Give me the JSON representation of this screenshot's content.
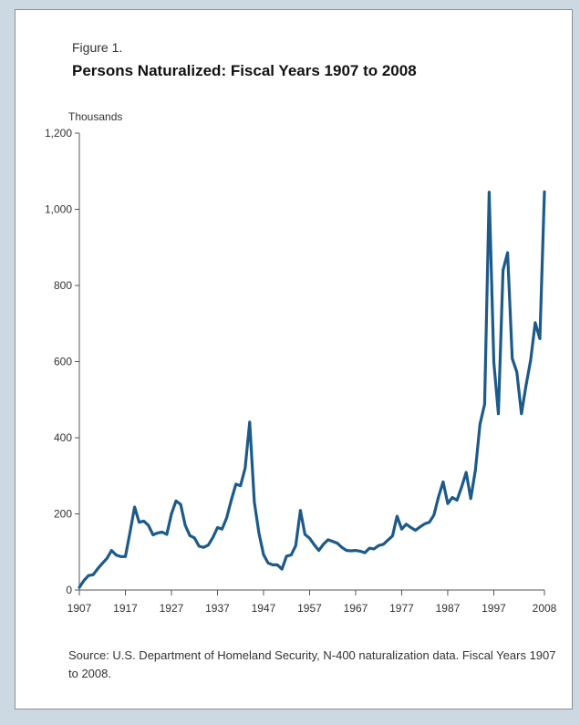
{
  "figure_label": "Figure 1.",
  "source_note": "Source: U.S. Department of Homeland Security, N-400 naturalization data. Fiscal Years 1907 to 2008.",
  "colors": {
    "line": "#1c5a8a",
    "axis": "#555555",
    "panel_bg": "#ffffff",
    "page_bg": "#ccd9e3"
  },
  "chart_data": {
    "type": "line",
    "title": "Persons Naturalized: Fiscal Years 1907 to 2008",
    "ylabel": "Thousands",
    "xlabel": "",
    "xlim": [
      1907,
      2008
    ],
    "ylim": [
      0,
      1200
    ],
    "grid": false,
    "xticks": [
      1907,
      1917,
      1927,
      1937,
      1947,
      1957,
      1967,
      1977,
      1987,
      1997,
      2008
    ],
    "xtick_labels": [
      "1907",
      "1917",
      "1927",
      "1937",
      "1947",
      "1957",
      "1967",
      "1977",
      "1987",
      "1997",
      "2008"
    ],
    "yticks": [
      0,
      200,
      400,
      600,
      800,
      1000,
      1200
    ],
    "ytick_labels": [
      "0",
      "200",
      "400",
      "600",
      "800",
      "1,000",
      "1,200"
    ],
    "series": [
      {
        "x": [
          1907,
          1908,
          1909,
          1910,
          1911,
          1912,
          1913,
          1914,
          1915,
          1916,
          1917,
          1918,
          1919,
          1920,
          1921,
          1922,
          1923,
          1924,
          1925,
          1926,
          1927,
          1928,
          1929,
          1930,
          1931,
          1932,
          1933,
          1934,
          1935,
          1936,
          1937,
          1938,
          1939,
          1940,
          1941,
          1942,
          1943,
          1944,
          1945,
          1946,
          1947,
          1948,
          1949,
          1950,
          1951,
          1952,
          1953,
          1954,
          1955,
          1956,
          1957,
          1958,
          1959,
          1960,
          1961,
          1962,
          1963,
          1964,
          1965,
          1966,
          1967,
          1968,
          1969,
          1970,
          1971,
          1972,
          1973,
          1974,
          1975,
          1976,
          1977,
          1978,
          1979,
          1980,
          1981,
          1982,
          1983,
          1984,
          1985,
          1986,
          1987,
          1988,
          1989,
          1990,
          1991,
          1992,
          1993,
          1994,
          1995,
          1996,
          1997,
          1998,
          1999,
          2000,
          2001,
          2002,
          2003,
          2004,
          2005,
          2006,
          2007,
          2008
        ],
        "values": [
          7,
          25,
          38,
          40,
          56,
          70,
          83,
          104,
          92,
          88,
          88,
          151,
          218,
          178,
          181,
          170,
          145,
          150,
          152,
          146,
          200,
          234,
          225,
          170,
          143,
          137,
          115,
          112,
          118,
          138,
          164,
          160,
          190,
          236,
          278,
          274,
          320,
          441,
          231,
          150,
          93,
          71,
          66,
          66,
          55,
          89,
          92,
          117,
          209,
          146,
          136,
          119,
          104,
          120,
          132,
          128,
          123,
          112,
          104,
          103,
          104,
          102,
          98,
          110,
          108,
          117,
          120,
          131,
          142,
          194,
          160,
          173,
          164,
          157,
          166,
          174,
          178,
          197,
          245,
          284,
          227,
          243,
          236,
          270,
          309,
          240,
          315,
          435,
          488,
          1045,
          598,
          463,
          840,
          886,
          608,
          573,
          463,
          537,
          604,
          702,
          660,
          1046
        ]
      }
    ]
  }
}
